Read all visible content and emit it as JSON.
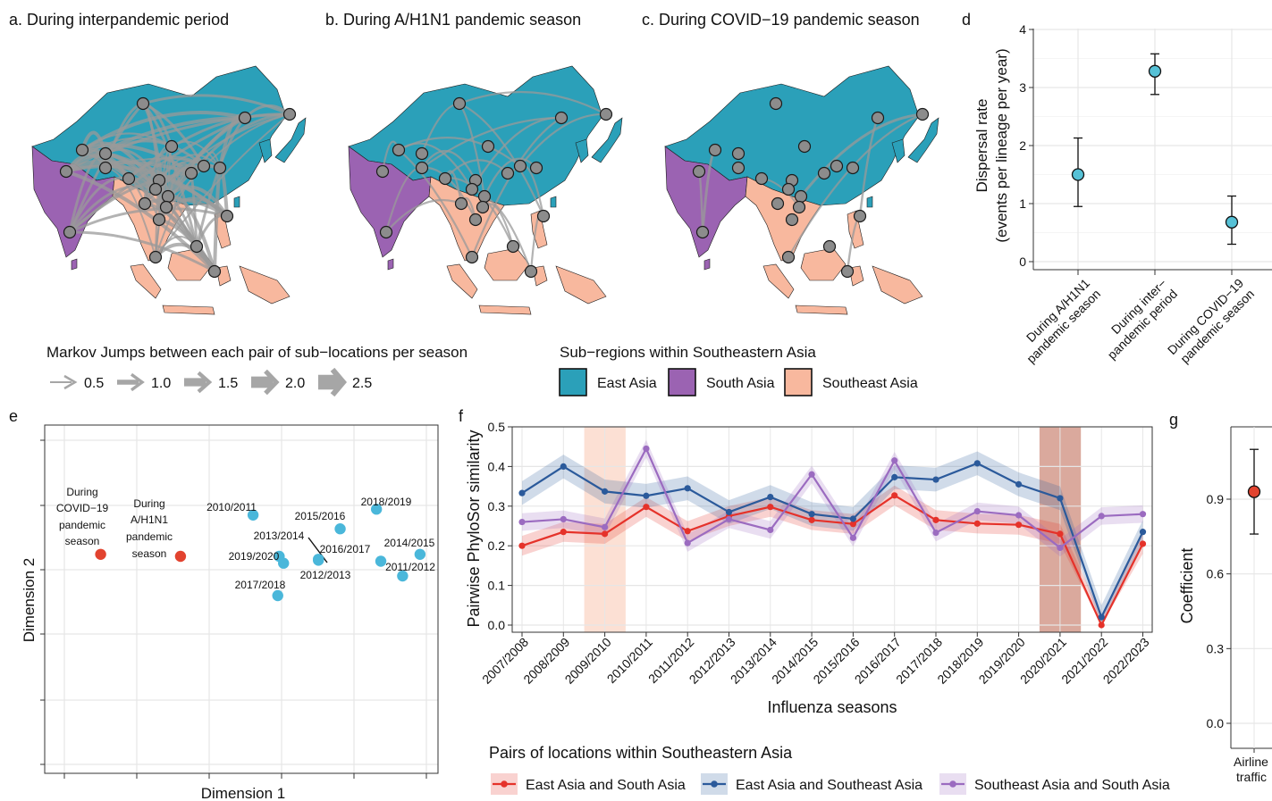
{
  "panels": {
    "a_title": "a. During interpandemic period",
    "b_title": "b. During A/H1N1 pandemic season",
    "c_title": "c. During COVID−19 pandemic season",
    "d_label": "d",
    "e_label": "e",
    "f_label": "f",
    "g_label": "g"
  },
  "map_legend": {
    "jumps_title": "Markov Jumps between each pair of sub−locations per season",
    "jump_values": [
      "0.5",
      "1.0",
      "1.5",
      "2.0",
      "2.5"
    ],
    "regions_title": "Sub−regions within Southeastern Asia",
    "regions": [
      {
        "name": "East Asia",
        "color": "#2ba0b9"
      },
      {
        "name": "South Asia",
        "color": "#9b63b2"
      },
      {
        "name": "Southeast Asia",
        "color": "#f8b89e"
      }
    ]
  },
  "colors": {
    "east_asia": "#2ba0b9",
    "south_asia": "#9b63b2",
    "southeast_asia": "#f8b89e",
    "point_d": "#56c1d6",
    "cluster_blue": "#4ab7da",
    "cluster_red": "#e2432f",
    "series_red": "#e5322a",
    "series_blue": "#2b5a9b",
    "series_purple": "#9b6bc0",
    "shade_light": "#fbd6c5",
    "shade_dark": "#d49a8c",
    "grid": "#e6e6e6"
  },
  "chart_data": [
    {
      "panel": "d",
      "type": "scatter",
      "ylabel": "Dispersal rate",
      "ylabel2": "(events per lineage per year)",
      "ylim": [
        0,
        4
      ],
      "yticks": [
        "0",
        "1",
        "2",
        "3",
        "4"
      ],
      "categories": [
        [
          "During A/H1N1",
          "pandemic season"
        ],
        [
          "During inter−",
          "pandemic period"
        ],
        [
          "During COVID−19",
          "pandemic season"
        ]
      ],
      "values": [
        1.5,
        3.28,
        0.68
      ],
      "lower": [
        0.95,
        2.88,
        0.3
      ],
      "upper": [
        2.13,
        3.58,
        1.13
      ]
    },
    {
      "panel": "e",
      "type": "scatter",
      "xlabel": "Dimension 1",
      "ylabel": "Dimension 2",
      "points": [
        {
          "label": "During COVID−19 pandemic season",
          "x": 0.5,
          "y": 0.52,
          "group": "pandemic"
        },
        {
          "label": "During A/H1N1 pandemic season",
          "x": 1.6,
          "y": 0.5,
          "group": "pandemic"
        },
        {
          "label": "2010/2011",
          "x": 2.6,
          "y": 0.92,
          "group": "season"
        },
        {
          "label": "2015/2016",
          "x": 3.8,
          "y": 0.78,
          "group": "season"
        },
        {
          "label": "2018/2019",
          "x": 4.3,
          "y": 0.98,
          "group": "season"
        },
        {
          "label": "2013/2014",
          "x": 3.5,
          "y": 0.47,
          "group": "season"
        },
        {
          "label": "2016/2017",
          "x": 3.5,
          "y": 0.46,
          "group": "season"
        },
        {
          "label": "2014/2015",
          "x": 4.9,
          "y": 0.52,
          "group": "season"
        },
        {
          "label": "2019/2020",
          "x": 2.96,
          "y": 0.5,
          "group": "season"
        },
        {
          "label": "2011/2012",
          "x": 4.66,
          "y": 0.3,
          "group": "season"
        },
        {
          "label": "2012/2013",
          "x": 4.36,
          "y": 0.45,
          "group": "season"
        },
        {
          "label": "2017/2018",
          "x": 2.94,
          "y": 0.1,
          "group": "season"
        },
        {
          "label": "",
          "x": 3.02,
          "y": 0.43,
          "group": "season"
        }
      ]
    },
    {
      "panel": "f",
      "type": "line",
      "xlabel": "Influenza seasons",
      "ylabel": "Pairwise PhyloSor similarity",
      "ylim": [
        0,
        0.5
      ],
      "yticks": [
        "0.0",
        "0.1",
        "0.2",
        "0.3",
        "0.4",
        "0.5"
      ],
      "categories": [
        "2007/2008",
        "2008/2009",
        "2009/2010",
        "2010/2011",
        "2011/2012",
        "2012/2013",
        "2013/2014",
        "2014/2015",
        "2015/2016",
        "2016/2017",
        "2017/2018",
        "2018/2019",
        "2019/2020",
        "2020/2021",
        "2021/2022",
        "2022/2023"
      ],
      "shaded": [
        "2009/2010",
        "2020/2021"
      ],
      "legend_title": "Pairs of locations within Southeastern Asia",
      "series": [
        {
          "name": "East Asia and South Asia",
          "color": "#e5322a",
          "values": [
            0.2,
            0.235,
            0.23,
            0.298,
            0.237,
            0.275,
            0.298,
            0.265,
            0.255,
            0.327,
            0.265,
            0.256,
            0.253,
            0.23,
            0.0,
            0.205
          ],
          "band": 0.025
        },
        {
          "name": "East Asia and Southeast Asia",
          "color": "#2b5a9b",
          "values": [
            0.333,
            0.4,
            0.337,
            0.326,
            0.345,
            0.285,
            0.323,
            0.28,
            0.268,
            0.373,
            0.367,
            0.408,
            0.355,
            0.32,
            0.02,
            0.235
          ],
          "band": 0.03
        },
        {
          "name": "Southeast Asia and South Asia",
          "color": "#9b6bc0",
          "values": [
            0.26,
            0.267,
            0.247,
            0.445,
            0.207,
            0.267,
            0.24,
            0.38,
            0.22,
            0.415,
            0.233,
            0.287,
            0.277,
            0.195,
            0.275,
            0.28
          ],
          "band": 0.022
        }
      ]
    },
    {
      "panel": "g",
      "type": "scatter",
      "ylabel": "Coefficient",
      "ylim": [
        0,
        1.1
      ],
      "yticks": [
        "0.0",
        "0.3",
        "0.6",
        "0.9"
      ],
      "categories": [
        [
          "Airline",
          "traffic"
        ]
      ],
      "values": [
        0.93
      ],
      "lower": [
        0.76
      ],
      "upper": [
        1.1
      ]
    }
  ]
}
